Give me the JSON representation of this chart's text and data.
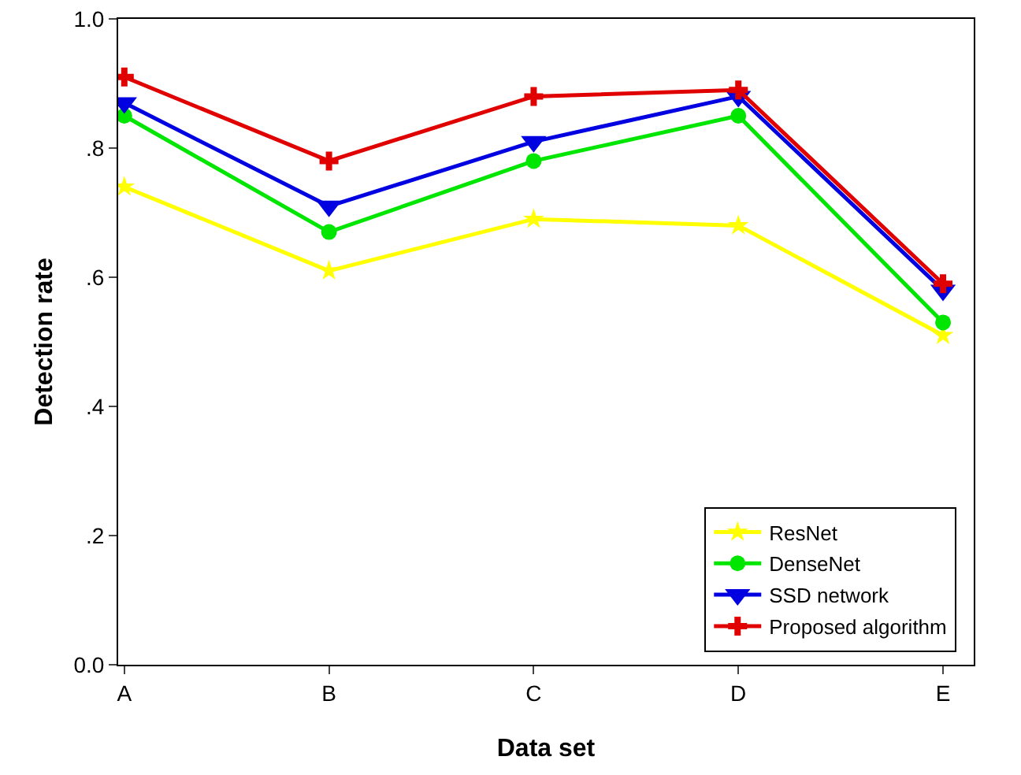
{
  "chart_data": {
    "type": "line",
    "xlabel": "Data set",
    "ylabel": "Detection rate",
    "categories": [
      "A",
      "B",
      "C",
      "D",
      "E"
    ],
    "series": [
      {
        "name": "ResNet",
        "color": "#ffff00",
        "marker": "star",
        "values": [
          0.74,
          0.61,
          0.69,
          0.68,
          0.51
        ]
      },
      {
        "name": "DenseNet",
        "color": "#00e600",
        "marker": "circle",
        "values": [
          0.85,
          0.67,
          0.78,
          0.85,
          0.53
        ]
      },
      {
        "name": "SSD network",
        "color": "#0000e0",
        "marker": "triangle",
        "values": [
          0.87,
          0.71,
          0.81,
          0.88,
          0.58
        ]
      },
      {
        "name": "Proposed algorithm",
        "color": "#e00000",
        "marker": "cross",
        "values": [
          0.91,
          0.78,
          0.88,
          0.89,
          0.59
        ]
      }
    ],
    "ylim": [
      0,
      1
    ],
    "yticks": [
      {
        "value": 0,
        "label": "0.0"
      },
      {
        "value": 0.2,
        "label": ".2"
      },
      {
        "value": 0.4,
        "label": ".4"
      },
      {
        "value": 0.6,
        "label": ".6"
      },
      {
        "value": 0.8,
        "label": ".8"
      },
      {
        "value": 1,
        "label": "1.0"
      }
    ],
    "grid": false,
    "legend": "bottom right",
    "line_style": "solid"
  }
}
